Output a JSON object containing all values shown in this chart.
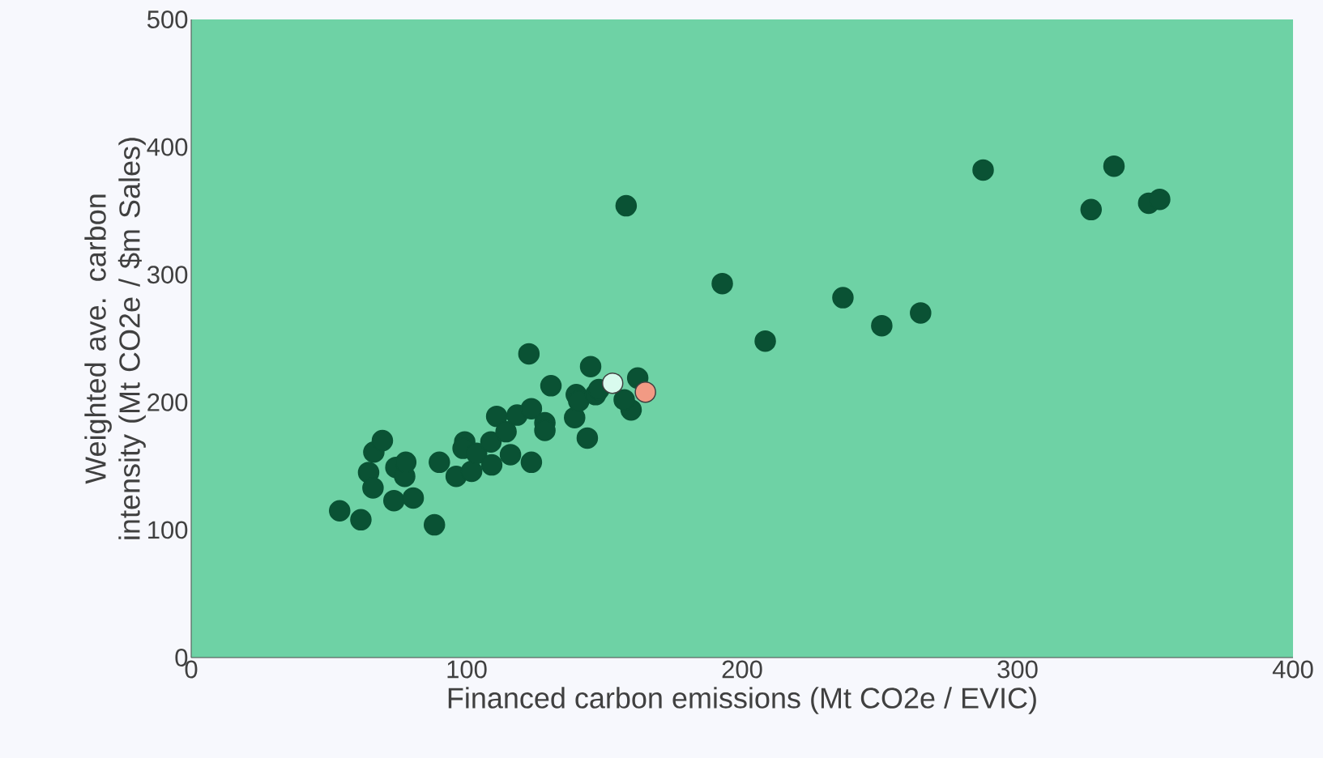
{
  "chart_data": {
    "type": "scatter",
    "xlabel": "Financed carbon emissions (Mt CO2e / EVIC)",
    "ylabel": "Weighted ave. carbon intensity (Mt CO2e / $m Sales)",
    "xlim": [
      0,
      400
    ],
    "ylim": [
      0,
      500
    ],
    "xticks": [
      0,
      100,
      200,
      300,
      400
    ],
    "yticks": [
      0,
      100,
      200,
      300,
      400,
      500
    ],
    "series": [
      {
        "color": "#0a5234",
        "x": [
          53.9,
          61.6,
          64.4,
          66,
          66.3,
          69.4,
          73.6,
          74.3,
          77.5,
          77.9,
          80.6,
          88.3,
          90.1,
          96.2,
          99.3,
          98.7,
          101.8,
          103.6,
          108.8,
          109.1,
          110.9,
          114.3,
          115.9,
          118.3,
          123.5,
          123.5,
          122.6,
          128.4,
          128.4,
          130.6,
          139.2,
          139.8,
          140.7,
          143.8,
          145,
          146.8,
          148,
          157.9,
          159.7,
          157.2,
          162.1,
          192.8,
          208.4,
          236.6,
          250.7,
          264.8,
          287.5,
          326.7,
          335,
          347.6,
          351.6
        ],
        "values": [
          115,
          108,
          145,
          133,
          161,
          170,
          123,
          149,
          142,
          153,
          125,
          104,
          153,
          142,
          169,
          164,
          146,
          160,
          169,
          151,
          189,
          177,
          159,
          190,
          195,
          153,
          238,
          184,
          178,
          213,
          188,
          206,
          201,
          172,
          228,
          206,
          210,
          354,
          194,
          202,
          219,
          293,
          248,
          282,
          260,
          270,
          382,
          351,
          385,
          356,
          359
        ]
      },
      {
        "color": "#d9fbee",
        "x": [
          153
        ],
        "values": [
          215
        ]
      },
      {
        "color": "#f29a84",
        "x": [
          164.9
        ],
        "values": [
          208
        ]
      }
    ]
  }
}
